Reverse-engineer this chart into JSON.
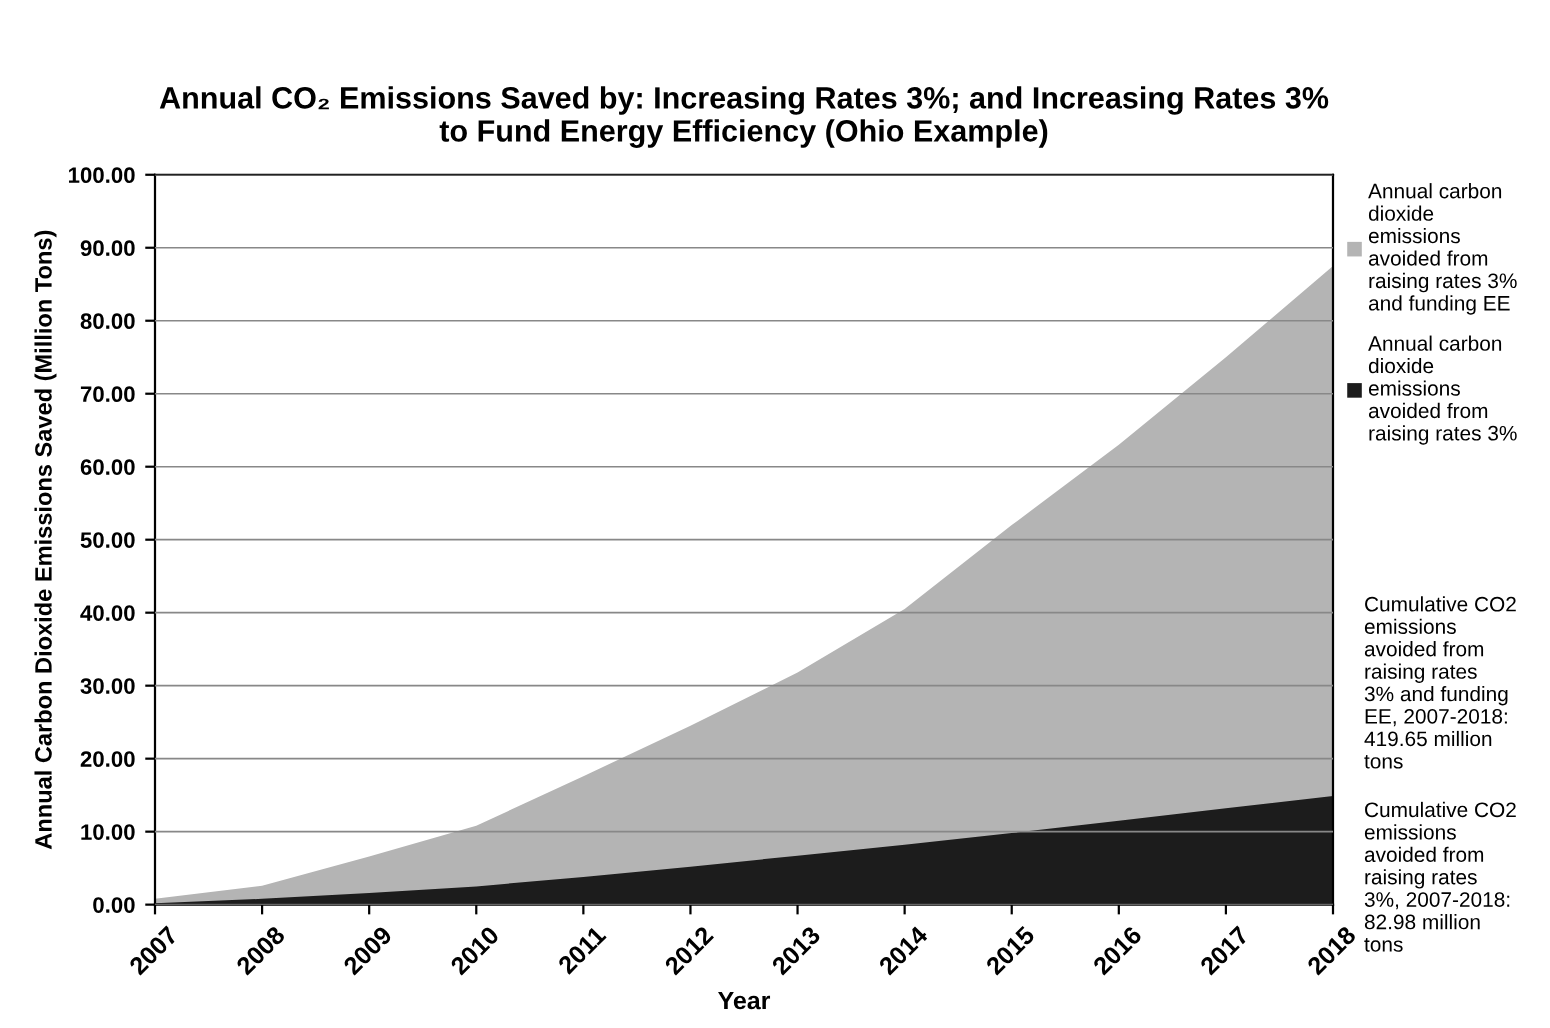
{
  "chart_data": {
    "type": "area",
    "title": "Annual CO₂ Emissions Saved by: Increasing Rates 3%; and Increasing Rates 3%\nto Fund Energy Efficiency (Ohio Example)",
    "xlabel": "Year",
    "ylabel": "Annual Carbon Dioxide Emissions Saved (Million Tons)",
    "categories": [
      "2007",
      "2008",
      "2009",
      "2010",
      "2011",
      "2012",
      "2013",
      "2014",
      "2015",
      "2016",
      "2017",
      "2018"
    ],
    "series": [
      {
        "name": "Annual carbon dioxide emissions avoided from raising rates 3% and funding EE",
        "color": "#b4b4b4",
        "values": [
          0.8,
          2.6,
          6.6,
          10.8,
          17.6,
          24.5,
          31.8,
          40.5,
          52,
          63,
          75,
          87.5
        ]
      },
      {
        "name": "Annual carbon dioxide emissions avoided from raising rates 3%",
        "color": "#1c1c1c",
        "values": [
          0.2,
          0.8,
          1.6,
          2.5,
          3.8,
          5.2,
          6.7,
          8.2,
          9.8,
          11.5,
          13.2,
          14.9
        ]
      }
    ],
    "ylim": [
      0,
      100
    ],
    "yticks": [
      {
        "value": 0,
        "label": "0.00"
      },
      {
        "value": 10,
        "label": "10.00"
      },
      {
        "value": 20,
        "label": "20.00"
      },
      {
        "value": 30,
        "label": "30.00"
      },
      {
        "value": 40,
        "label": "40.00"
      },
      {
        "value": 50,
        "label": "50.00"
      },
      {
        "value": 60,
        "label": "60.00"
      },
      {
        "value": 70,
        "label": "70.00"
      },
      {
        "value": 80,
        "label": "80.00"
      },
      {
        "value": 90,
        "label": "90.00"
      },
      {
        "value": 100,
        "label": "100.00"
      }
    ],
    "grid": "y",
    "legend": "top right",
    "annotations": [
      "Cumulative CO2 emissions avoided from raising rates 3% and funding EE, 2007-2018: 419.65 million tons",
      "Cumulative CO2 emissions avoided from raising rates 3%, 2007-2018: 82.98 million tons"
    ]
  }
}
